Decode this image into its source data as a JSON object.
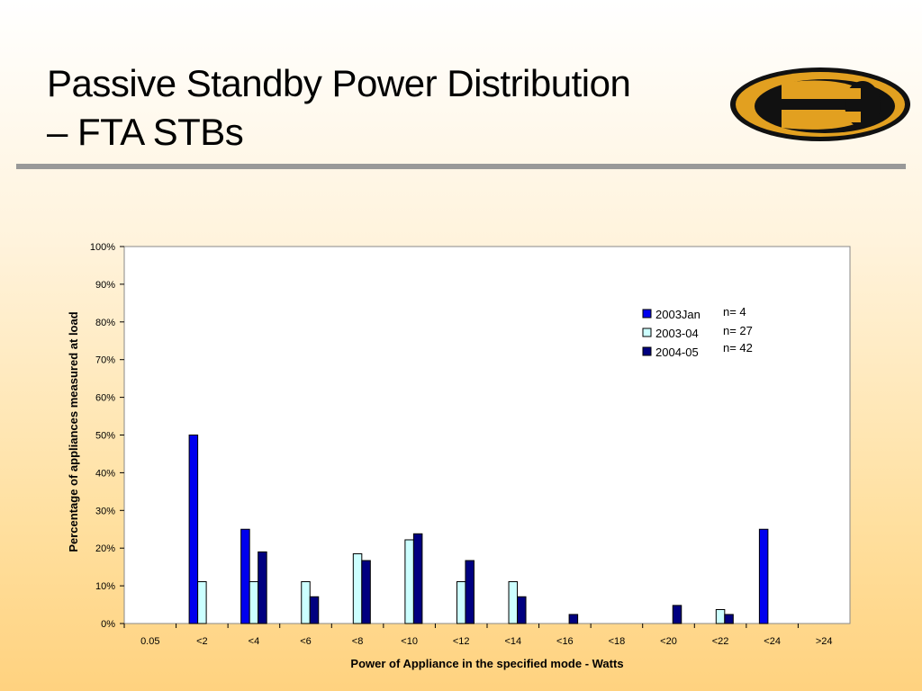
{
  "slide": {
    "title_line1": "Passive Standby Power Distribution",
    "title_line2": "– FTA STBs"
  },
  "colors": {
    "series_2003jan": "#0000ee",
    "series_2003_04": "#ccffff",
    "series_2004_05": "#000080",
    "rule": "#999999",
    "logo_gold": "#e2a020",
    "logo_dark": "#111111"
  },
  "icons": {
    "logo": "logo-icon"
  },
  "chart_data": {
    "type": "bar",
    "xlabel": "Power of Appliance in the specified mode - Watts",
    "ylabel": "Percentage of appliances measured at load",
    "categories": [
      "0.05",
      "<2",
      "<4",
      "<6",
      "<8",
      "<10",
      "<12",
      "<14",
      "<16",
      "<18",
      "<20",
      "<22",
      "<24",
      ">24"
    ],
    "ylim": [
      0,
      100
    ],
    "yticks": [
      "0%",
      "10%",
      "20%",
      "30%",
      "40%",
      "50%",
      "60%",
      "70%",
      "80%",
      "90%",
      "100%"
    ],
    "grid": false,
    "legend_position": "top-right",
    "series": [
      {
        "name": "2003Jan",
        "n": "n= 4",
        "values": [
          0,
          50,
          25,
          0,
          0,
          0,
          0,
          0,
          0,
          0,
          0,
          0,
          25,
          0
        ]
      },
      {
        "name": "2003-04",
        "n": "n= 27",
        "values": [
          0,
          11.1,
          11.1,
          11.1,
          18.5,
          22.2,
          11.1,
          11.1,
          0,
          0,
          0,
          3.7,
          0,
          0
        ]
      },
      {
        "name": "2004-05",
        "n": "n= 42",
        "values": [
          0,
          0,
          19,
          7.1,
          16.7,
          23.8,
          16.7,
          7.1,
          2.4,
          0,
          4.8,
          2.4,
          0,
          0
        ]
      }
    ]
  }
}
